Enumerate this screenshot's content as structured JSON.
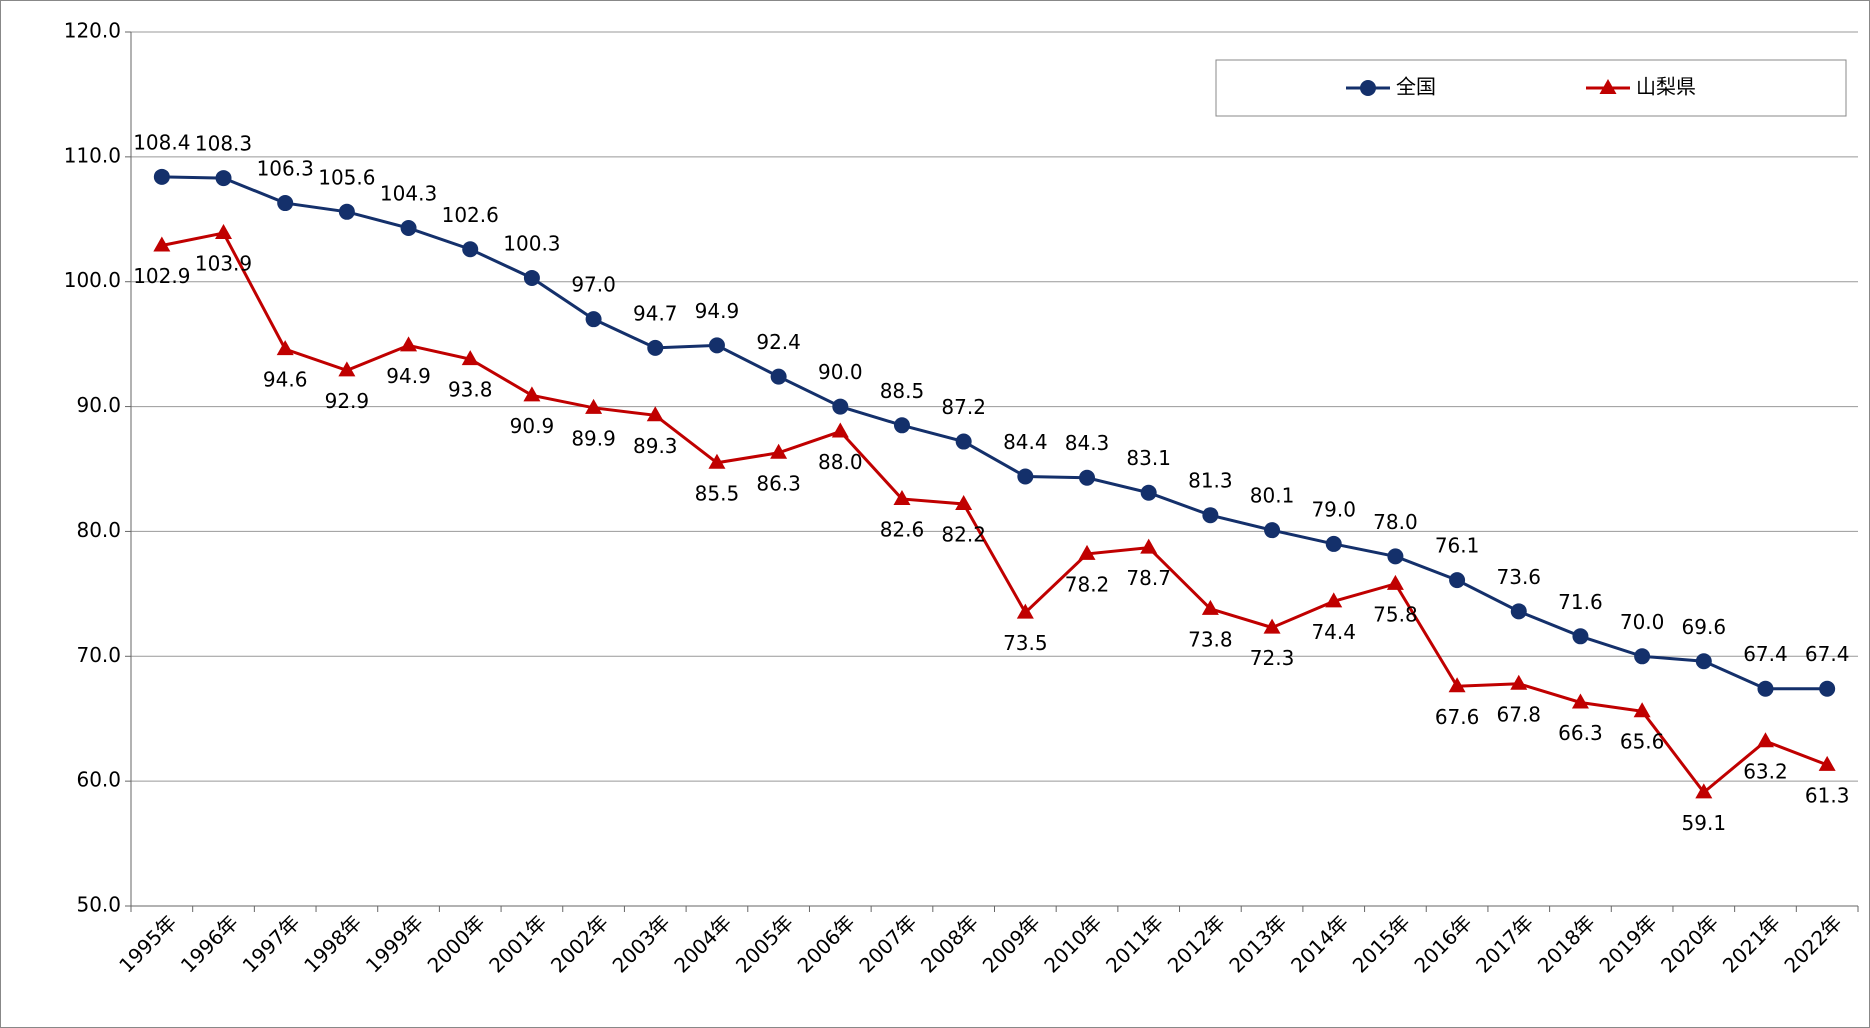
{
  "chart_data": {
    "type": "line",
    "categories": [
      "1995年",
      "1996年",
      "1997年",
      "1998年",
      "1999年",
      "2000年",
      "2001年",
      "2002年",
      "2003年",
      "2004年",
      "2005年",
      "2006年",
      "2007年",
      "2008年",
      "2009年",
      "2010年",
      "2011年",
      "2012年",
      "2013年",
      "2014年",
      "2015年",
      "2016年",
      "2017年",
      "2018年",
      "2019年",
      "2020年",
      "2021年",
      "2022年"
    ],
    "series": [
      {
        "name": "全国",
        "color": "#14306b",
        "marker": "circle",
        "values": [
          108.4,
          108.3,
          106.3,
          105.6,
          104.3,
          102.6,
          100.3,
          97.0,
          94.7,
          94.9,
          92.4,
          90.0,
          88.5,
          87.2,
          84.4,
          84.3,
          83.1,
          81.3,
          80.1,
          79.0,
          78.0,
          76.1,
          73.6,
          71.6,
          70.0,
          69.6,
          67.4,
          67.4
        ],
        "value_labels": [
          "108.4",
          "108.3",
          "106.3",
          "105.6",
          "104.3",
          "102.6",
          "100.3",
          "97.0",
          "94.7",
          "94.9",
          "92.4",
          "90.0",
          "88.5",
          "87.2",
          "84.4",
          "84.3",
          "83.1",
          "81.3",
          "80.1",
          "79.0",
          "78.0",
          "76.1",
          "73.6",
          "71.6",
          "70.0",
          "69.6",
          "67.4",
          "67.4"
        ]
      },
      {
        "name": "山梨県",
        "color": "#c00000",
        "marker": "triangle",
        "values": [
          102.9,
          103.9,
          94.6,
          92.9,
          94.9,
          93.8,
          90.9,
          89.9,
          89.3,
          85.5,
          86.3,
          88.0,
          82.6,
          82.2,
          73.5,
          78.2,
          78.7,
          73.8,
          72.3,
          74.4,
          75.8,
          67.6,
          67.8,
          66.3,
          65.6,
          59.1,
          63.2,
          61.3
        ],
        "value_labels": [
          "102.9",
          "103.9",
          "94.6",
          "92.9",
          "94.9",
          "93.8",
          "90.9",
          "89.9",
          "89.3",
          "85.5",
          "86.3",
          "88.0",
          "82.6",
          "82.2",
          "73.5",
          "78.2",
          "78.7",
          "73.8",
          "72.3",
          "74.4",
          "75.8",
          "67.6",
          "67.8",
          "66.3",
          "65.6",
          "59.1",
          "63.2",
          "61.3"
        ]
      }
    ],
    "ylim": [
      50,
      120
    ],
    "yticks": [
      {
        "value": 50,
        "label": "50.0"
      },
      {
        "value": 60,
        "label": "60.0"
      },
      {
        "value": 70,
        "label": "70.0"
      },
      {
        "value": 80,
        "label": "80.0"
      },
      {
        "value": 90,
        "label": "90.0"
      },
      {
        "value": 100,
        "label": "100.0"
      },
      {
        "value": 110,
        "label": "110.0"
      },
      {
        "value": 120,
        "label": "120.0"
      }
    ],
    "grid": true,
    "legend": "top-right"
  }
}
